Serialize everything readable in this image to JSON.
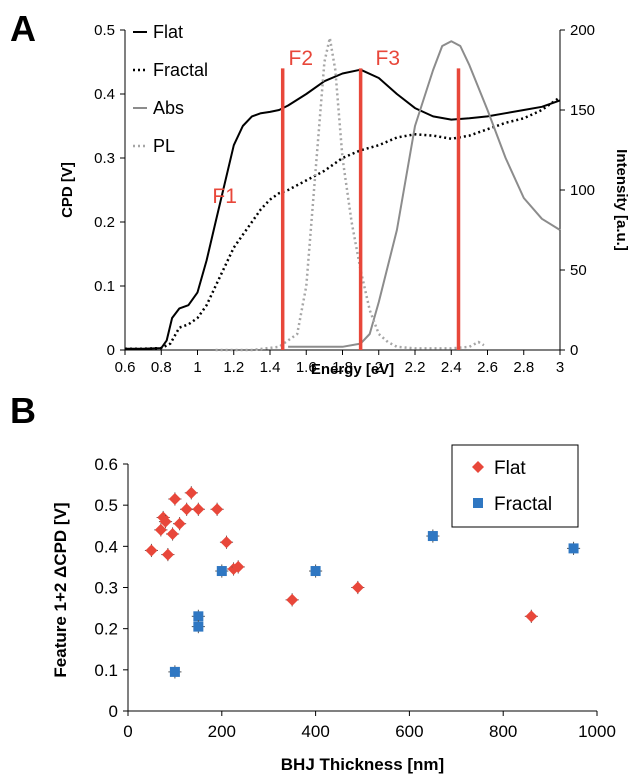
{
  "panels": {
    "a": "A",
    "b": "B"
  },
  "colors": {
    "flat_line": "#000000",
    "fractal_line": "#000000",
    "abs_line": "#8c8c8c",
    "pl_line": "#a6a6a6",
    "feature_line": "#e8473a",
    "flat_marker": "#e8473a",
    "fractal_marker": "#2f77c2"
  },
  "chart_data": [
    {
      "type": "line",
      "panel": "A",
      "xlabel": "Energy [eV]",
      "ylabel": "CPD [V]",
      "y2label": "Intensity [a.u.]",
      "xlim": [
        0.6,
        3.0
      ],
      "ylim": [
        0,
        0.5
      ],
      "y2lim": [
        0,
        200
      ],
      "xticks": [
        "0.6",
        "0.8",
        "1",
        "1.2",
        "1.4",
        "1.6",
        "1.8",
        "2",
        "2.2",
        "2.4",
        "2.6",
        "2.8",
        "3"
      ],
      "yticks": [
        "0",
        "0.1",
        "0.2",
        "0.3",
        "0.4",
        "0.5"
      ],
      "y2ticks": [
        "0",
        "50",
        "100",
        "150",
        "200"
      ],
      "legend_position": "top-left",
      "series": [
        {
          "name": "Flat",
          "axis": "left",
          "style": "solid",
          "x": [
            0.6,
            0.7,
            0.8,
            0.83,
            0.86,
            0.9,
            0.95,
            1.0,
            1.05,
            1.1,
            1.15,
            1.2,
            1.25,
            1.3,
            1.35,
            1.4,
            1.45,
            1.5,
            1.6,
            1.7,
            1.8,
            1.9,
            2.0,
            2.1,
            2.2,
            2.3,
            2.4,
            2.5,
            2.6,
            2.7,
            2.8,
            2.9,
            3.0
          ],
          "y": [
            0.002,
            0.002,
            0.003,
            0.015,
            0.05,
            0.065,
            0.07,
            0.09,
            0.14,
            0.2,
            0.26,
            0.32,
            0.35,
            0.365,
            0.37,
            0.372,
            0.375,
            0.382,
            0.4,
            0.42,
            0.432,
            0.438,
            0.425,
            0.4,
            0.378,
            0.365,
            0.36,
            0.362,
            0.365,
            0.37,
            0.375,
            0.38,
            0.39
          ]
        },
        {
          "name": "Fractal",
          "axis": "left",
          "style": "dotted",
          "x": [
            0.6,
            0.7,
            0.8,
            0.85,
            0.9,
            0.95,
            1.0,
            1.05,
            1.1,
            1.15,
            1.2,
            1.25,
            1.3,
            1.35,
            1.4,
            1.45,
            1.5,
            1.6,
            1.7,
            1.8,
            1.9,
            2.0,
            2.1,
            2.2,
            2.3,
            2.4,
            2.5,
            2.6,
            2.7,
            2.8,
            2.9,
            3.0
          ],
          "y": [
            0.002,
            0.002,
            0.003,
            0.01,
            0.035,
            0.04,
            0.05,
            0.07,
            0.1,
            0.13,
            0.16,
            0.18,
            0.2,
            0.22,
            0.235,
            0.245,
            0.25,
            0.265,
            0.28,
            0.3,
            0.312,
            0.32,
            0.332,
            0.337,
            0.335,
            0.33,
            0.335,
            0.345,
            0.355,
            0.362,
            0.375,
            0.395
          ]
        },
        {
          "name": "Abs",
          "axis": "right",
          "style": "solid",
          "x": [
            1.5,
            1.6,
            1.7,
            1.8,
            1.9,
            1.95,
            2.0,
            2.1,
            2.2,
            2.3,
            2.35,
            2.4,
            2.45,
            2.5,
            2.6,
            2.7,
            2.8,
            2.9,
            3.0
          ],
          "y": [
            2,
            2,
            2,
            2,
            4,
            10,
            30,
            75,
            140,
            175,
            190,
            193,
            190,
            178,
            150,
            120,
            95,
            82,
            75
          ]
        },
        {
          "name": "PL",
          "axis": "right",
          "style": "dotted",
          "x": [
            1.1,
            1.3,
            1.45,
            1.55,
            1.6,
            1.65,
            1.7,
            1.73,
            1.76,
            1.8,
            1.85,
            1.9,
            1.95,
            2.0,
            2.05,
            2.1,
            2.2,
            2.4,
            2.5,
            2.55,
            2.58
          ],
          "y": [
            0,
            0,
            2,
            10,
            40,
            110,
            180,
            195,
            175,
            120,
            80,
            50,
            25,
            10,
            5,
            2,
            1,
            1,
            2,
            5,
            3
          ]
        }
      ],
      "annotations": [
        {
          "label": "F1",
          "x": 1.15,
          "y": 0.23
        },
        {
          "label": "F2",
          "x": 1.57,
          "y": 0.445
        },
        {
          "label": "F3",
          "x": 2.05,
          "y": 0.445
        }
      ],
      "feature_lines": [
        1.47,
        1.9,
        2.44
      ]
    },
    {
      "type": "scatter",
      "panel": "B",
      "xlabel": "BHJ Thickness [nm]",
      "ylabel": "Feature 1+2 ΔCPD [V]",
      "xlim": [
        0,
        1000
      ],
      "ylim": [
        0,
        0.6
      ],
      "xticks": [
        "0",
        "200",
        "400",
        "600",
        "800",
        "1000"
      ],
      "yticks": [
        "0",
        "0.1",
        "0.2",
        "0.3",
        "0.4",
        "0.5",
        "0.6"
      ],
      "legend_position": "top-right",
      "series": [
        {
          "name": "Flat",
          "marker": "diamond",
          "x": [
            50,
            70,
            75,
            80,
            85,
            95,
            100,
            110,
            125,
            135,
            150,
            190,
            210,
            225,
            235,
            350,
            490,
            860
          ],
          "y": [
            0.39,
            0.44,
            0.47,
            0.46,
            0.38,
            0.43,
            0.515,
            0.455,
            0.49,
            0.53,
            0.49,
            0.49,
            0.41,
            0.345,
            0.35,
            0.27,
            0.3,
            0.23
          ]
        },
        {
          "name": "Fractal",
          "marker": "square",
          "x": [
            100,
            150,
            150,
            200,
            400,
            650,
            950
          ],
          "y": [
            0.095,
            0.23,
            0.205,
            0.34,
            0.34,
            0.425,
            0.395
          ]
        }
      ]
    }
  ]
}
